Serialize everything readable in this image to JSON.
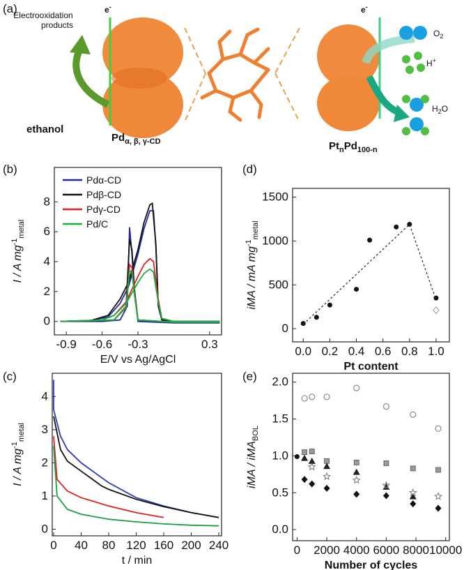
{
  "panel_a": {
    "label": "(a)",
    "products": [
      "Electrooxidation",
      "products"
    ],
    "electron_left": {
      "main": "e",
      "sup": "-"
    },
    "ethanol": "ethanol",
    "pd_label": {
      "main": "Pd",
      "sub": "α, β, γ-CD"
    },
    "electron_right": {
      "main": "e",
      "sup": "-"
    },
    "o2": {
      "main": "O",
      "sub": "2"
    },
    "h_plus": {
      "main": "H",
      "sup": "+"
    },
    "h2o": {
      "main": "H",
      "sub": "2",
      "end": "O"
    },
    "pt_label": {
      "parts": [
        "Pt",
        "n",
        "Pd",
        "100-n"
      ]
    }
  },
  "chart_data": [
    {
      "type": "line",
      "label": "(b)",
      "xlabel": "E/V vs Ag/AgCl",
      "ylabel": {
        "main": "I / A mg",
        "sup": "-1",
        "sub": "metal"
      },
      "xlim": [
        -1.0,
        0.4
      ],
      "ylim": [
        -0.9,
        10.3
      ],
      "xticks": [
        -0.9,
        -0.6,
        -0.3,
        0.3
      ],
      "yticks": [
        0,
        2,
        4,
        6,
        8
      ],
      "legend": "upper left",
      "series": [
        {
          "name": "Pdα-CD",
          "color": "#1f2a9c",
          "x": [
            -0.95,
            -0.7,
            -0.55,
            -0.45,
            -0.38,
            -0.3,
            -0.25,
            -0.2,
            -0.17,
            -0.15,
            -0.13,
            -0.1,
            0.0,
            0.38,
            0.38,
            0.0,
            -0.3,
            -0.33,
            -0.35,
            -0.37,
            -0.39,
            -0.45,
            -0.6,
            -0.95
          ],
          "values": [
            0,
            0.05,
            0.3,
            1.2,
            2.3,
            4.5,
            6.2,
            7.4,
            7.4,
            5.0,
            1.0,
            0.1,
            0,
            0,
            -0.1,
            -0.1,
            0,
            2.0,
            4.5,
            6.3,
            1.0,
            0.1,
            0,
            0
          ]
        },
        {
          "name": "Pdβ-CD",
          "color": "#111111",
          "x": [
            -0.95,
            -0.7,
            -0.55,
            -0.45,
            -0.38,
            -0.3,
            -0.25,
            -0.2,
            -0.18,
            -0.15,
            -0.13,
            -0.1,
            0.0,
            0.38,
            0.38,
            0.0,
            -0.3,
            -0.33,
            -0.35,
            -0.37,
            -0.4,
            -0.5,
            -0.95
          ],
          "values": [
            0,
            0.05,
            0.4,
            1.5,
            2.6,
            4.8,
            6.6,
            7.8,
            7.9,
            5.2,
            1.2,
            0.1,
            0,
            0,
            -0.05,
            -0.05,
            0.1,
            2.2,
            4.8,
            5.5,
            1.0,
            0.1,
            0
          ]
        },
        {
          "name": "Pdγ-CD",
          "color": "#e02020",
          "x": [
            -0.95,
            -0.6,
            -0.5,
            -0.4,
            -0.3,
            -0.25,
            -0.2,
            -0.17,
            -0.13,
            -0.1,
            0.0,
            0.38,
            0.38,
            0.0,
            -0.3,
            -0.33,
            -0.35,
            -0.37,
            -0.4,
            -0.5,
            -0.95
          ],
          "values": [
            0,
            0.1,
            0.4,
            1.3,
            3.0,
            3.8,
            4.2,
            4.0,
            1.5,
            0.2,
            0,
            0,
            -0.05,
            -0.05,
            0.1,
            2.0,
            3.6,
            3.8,
            1.0,
            0.1,
            0
          ]
        },
        {
          "name": "Pd/C",
          "color": "#18b040",
          "x": [
            -0.95,
            -0.6,
            -0.5,
            -0.4,
            -0.3,
            -0.25,
            -0.2,
            -0.17,
            -0.13,
            -0.1,
            0.0,
            0.38,
            0.38,
            0.0,
            -0.3,
            -0.33,
            -0.35,
            -0.37,
            -0.4,
            -0.5,
            -0.95
          ],
          "values": [
            0,
            0.1,
            0.4,
            1.2,
            2.6,
            3.2,
            3.5,
            3.3,
            1.3,
            0.2,
            0,
            0,
            -0.05,
            -0.05,
            0.1,
            1.8,
            3.3,
            3.4,
            0.9,
            0.1,
            0
          ]
        }
      ]
    },
    {
      "type": "line",
      "label": "(c)",
      "xlabel": "t / min",
      "ylabel": {
        "main": "I / A mg",
        "sup": "-1",
        "sub": "metal"
      },
      "xlim": [
        -2,
        244
      ],
      "ylim": [
        -0.2,
        4.7
      ],
      "xticks": [
        0,
        40,
        80,
        120,
        160,
        200,
        240
      ],
      "yticks": [
        0,
        1,
        2,
        3,
        4
      ],
      "series": [
        {
          "color": "#2a3ab0",
          "x": [
            0,
            0,
            10,
            20,
            40,
            60,
            80,
            120,
            160,
            200,
            240
          ],
          "values": [
            4.5,
            3.6,
            2.8,
            2.4,
            2.0,
            1.7,
            1.4,
            0.95,
            0.7,
            0.5,
            0.35
          ]
        },
        {
          "color": "#111111",
          "x": [
            0,
            10,
            20,
            40,
            60,
            70,
            80,
            120,
            160,
            200,
            240
          ],
          "values": [
            3.4,
            2.4,
            2.05,
            1.75,
            1.45,
            1.3,
            1.2,
            0.9,
            0.68,
            0.5,
            0.35
          ]
        },
        {
          "color": "#e02020",
          "x": [
            0,
            5,
            20,
            40,
            80,
            120,
            160
          ],
          "values": [
            2.8,
            1.5,
            1.15,
            0.95,
            0.7,
            0.5,
            0.35
          ]
        },
        {
          "color": "#18a040",
          "x": [
            0,
            5,
            20,
            40,
            80,
            120,
            160,
            200,
            240
          ],
          "values": [
            2.5,
            1.0,
            0.6,
            0.45,
            0.3,
            0.22,
            0.16,
            0.12,
            0.1
          ]
        }
      ]
    },
    {
      "type": "scatter",
      "label": "(d)",
      "xlabel": "Pt content",
      "ylabel": {
        "main": "iMA / mA mg",
        "sup": "-1",
        "sub": "metal"
      },
      "xlim": [
        -0.08,
        1.1
      ],
      "ylim": [
        -150,
        1600
      ],
      "xticks": [
        {
          "value": 0,
          "label": "0.0"
        },
        0.2,
        0.4,
        0.6,
        0.8,
        {
          "value": 1,
          "label": "1.0"
        }
      ],
      "yticks": [
        0,
        500,
        1000,
        1500
      ],
      "series": [
        {
          "color": "#111111",
          "marker": "circle",
          "x": [
            0,
            0.1,
            0.2,
            0.4,
            0.5,
            0.7,
            0.8,
            1.0
          ],
          "values": [
            60,
            130,
            270,
            450,
            1010,
            1160,
            1190,
            350
          ]
        },
        {
          "color": "#999999",
          "marker": "diamond-open",
          "x": [
            1.0
          ],
          "values": [
            210
          ]
        },
        {
          "color": "#333333",
          "marker": "dashed-line",
          "x": [
            0,
            0.8,
            1.0
          ],
          "values": [
            50,
            1190,
            330
          ]
        }
      ]
    },
    {
      "type": "scatter",
      "label": "(e)",
      "xlabel": "Number of cycles",
      "ylabel": {
        "main": "iMA / iMA",
        "sub": "BOL"
      },
      "xlim": [
        -300,
        10250
      ],
      "ylim": [
        -0.15,
        2.12
      ],
      "xticks": [
        0,
        2000,
        4000,
        6000,
        8000,
        10000
      ],
      "yticks": [
        {
          "value": 0,
          "label": "0.0"
        },
        0.5,
        {
          "value": 1,
          "label": "1.0"
        },
        1.5,
        {
          "value": 2,
          "label": "2.0"
        }
      ],
      "series": [
        {
          "color": "#888888",
          "marker": "circle-open",
          "x": [
            500,
            1000,
            2000,
            4000,
            6000,
            7800,
            9500
          ],
          "values": [
            1.78,
            1.8,
            1.8,
            1.92,
            1.67,
            1.56,
            1.37
          ]
        },
        {
          "color": "#999999",
          "marker": "square",
          "x": [
            500,
            1000,
            2000,
            4000,
            6000,
            7800,
            9500
          ],
          "values": [
            1.05,
            1.06,
            0.93,
            0.91,
            0.9,
            0.83,
            0.81
          ]
        },
        {
          "color": "#222222",
          "marker": "triangle",
          "x": [
            500,
            1000,
            2000,
            4000,
            6000,
            7800
          ],
          "values": [
            0.97,
            0.93,
            0.86,
            0.78,
            0.58,
            0.45
          ]
        },
        {
          "color": "#777777",
          "marker": "star-open",
          "x": [
            1000,
            2000,
            4000,
            6000,
            7800,
            9500
          ],
          "values": [
            0.85,
            0.72,
            0.67,
            0.6,
            0.5,
            0.45
          ]
        },
        {
          "color": "#111111",
          "marker": "diamond",
          "x": [
            500,
            1000,
            2000,
            4000,
            6000,
            7800,
            9500
          ],
          "values": [
            0.68,
            0.62,
            0.56,
            0.48,
            0.46,
            0.35,
            0.29
          ]
        },
        {
          "color": "#111111",
          "marker": "circle",
          "x": [
            0
          ],
          "values": [
            0.99
          ]
        }
      ]
    }
  ]
}
